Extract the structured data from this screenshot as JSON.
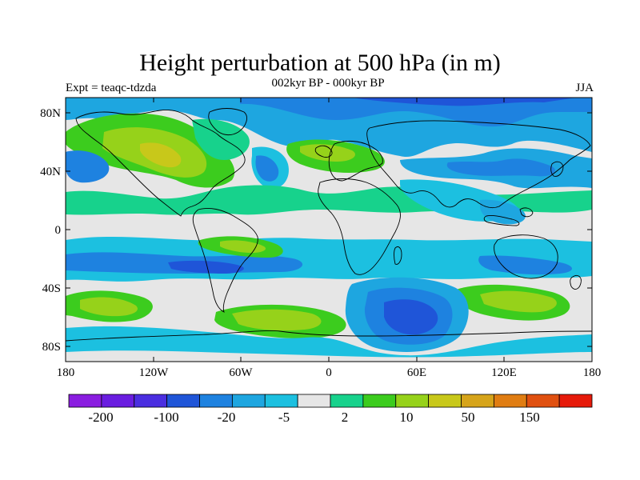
{
  "title": "Height perturbation at 500 hPa (in m)",
  "subtitle_left": "Expt = teaqc-tdzda",
  "subtitle_center": "002kyr BP - 000kyr BP",
  "subtitle_right": "JJA",
  "axes": {
    "x_ticks": [
      "180",
      "120W",
      "60W",
      "0",
      "60E",
      "120E",
      "180"
    ],
    "y_ticks": [
      "80N",
      "40N",
      "0",
      "40S",
      "80S"
    ]
  },
  "colorbar": {
    "labels": [
      "-200",
      "-100",
      "-20",
      "-5",
      "2",
      "10",
      "50",
      "150"
    ],
    "colors": [
      "#8a1de0",
      "#6a1de0",
      "#4a2ee0",
      "#1f55d8",
      "#1e82e0",
      "#1ea6e0",
      "#1cc0e0",
      "#e6e6e6",
      "#17d28c",
      "#3ccc1e",
      "#96d21a",
      "#c8c81a",
      "#d6a41a",
      "#e07d12",
      "#e05010",
      "#e61a0a"
    ]
  },
  "map_colors": {
    "background": "#e6e6e6",
    "blue_light": "#1cc0e0",
    "blue_mid": "#1ea6e0",
    "blue": "#1e82e0",
    "blue_dark": "#1f55d8",
    "green_teal": "#17d28c",
    "green": "#3ccc1e",
    "yellow_green": "#96d21a",
    "yellow": "#c8c81a",
    "orange": "#d6a41a"
  }
}
